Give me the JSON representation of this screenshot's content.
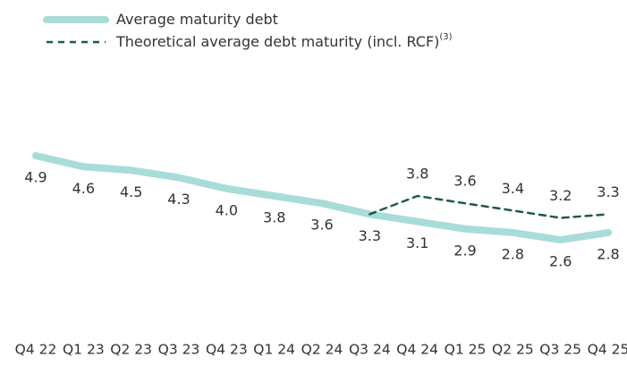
{
  "chart_data": {
    "type": "line",
    "categories": [
      "Q4 22",
      "Q1 23",
      "Q2 23",
      "Q3 23",
      "Q4 23",
      "Q1 24",
      "Q2 24",
      "Q3 24",
      "Q4 24",
      "Q1 25",
      "Q2 25",
      "Q3 25",
      "Q4 25"
    ],
    "series": [
      {
        "name": "Average maturity debt",
        "color": "#a8dcd9",
        "style": "solid",
        "values": [
          4.9,
          4.6,
          4.5,
          4.3,
          4.0,
          3.8,
          3.6,
          3.3,
          3.1,
          2.9,
          2.8,
          2.6,
          2.8
        ],
        "value_labels": [
          "4.9",
          "4.6",
          "4.5",
          "4.3",
          "4.0",
          "3.8",
          "3.6",
          "3.3",
          "3.1",
          "2.9",
          "2.8",
          "2.6",
          "2.8"
        ]
      },
      {
        "name": "Theoretical average debt maturity (incl. RCF)",
        "name_note": "(3)",
        "color": "#1d5c40",
        "style": "dashed",
        "values": [
          null,
          null,
          null,
          null,
          null,
          null,
          null,
          3.3,
          3.8,
          3.6,
          3.4,
          3.2,
          3.3
        ],
        "value_labels": [
          null,
          null,
          null,
          null,
          null,
          null,
          null,
          null,
          "3.8",
          "3.6",
          "3.4",
          "3.2",
          "3.3"
        ]
      }
    ],
    "legend": "top-left"
  }
}
